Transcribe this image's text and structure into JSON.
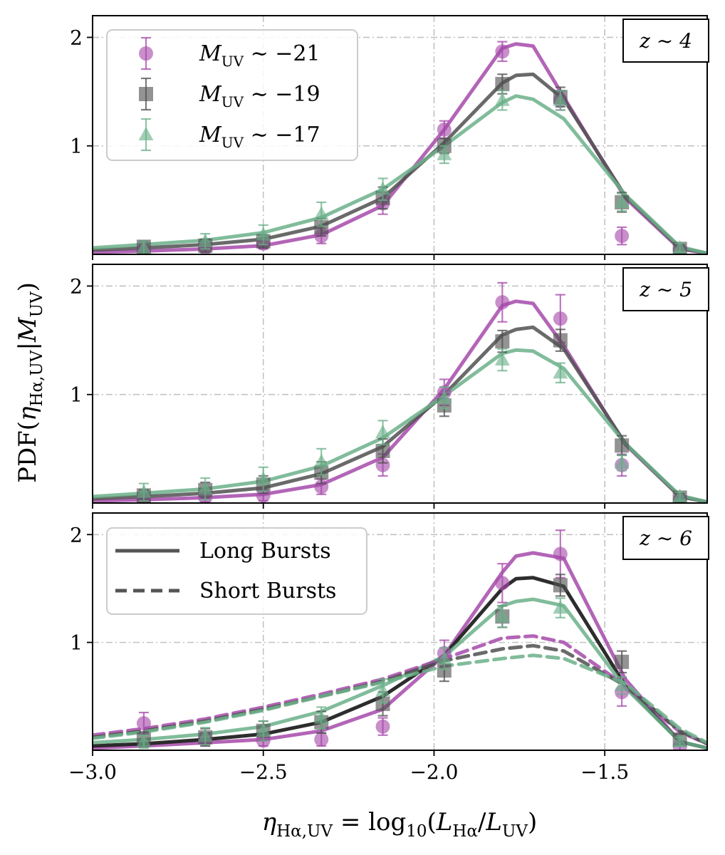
{
  "chart_data": {
    "type": "line",
    "xlabel": "η_{Hα,UV} = log10(L_Hα / L_UV)",
    "ylabel": "PDF(η_{Hα,UV} | M_UV)",
    "xlim": [
      -3.0,
      -1.2
    ],
    "ylim": [
      0,
      2.2
    ],
    "xticks": [
      -3.0,
      -2.5,
      -2.0,
      -1.5
    ],
    "xtick_labels": [
      "−3.0",
      "−2.5",
      "−2.0",
      "−1.5"
    ],
    "yticks": [
      1,
      2
    ],
    "ytick_labels": [
      "1",
      "2"
    ],
    "grid": true,
    "colors": {
      "m21": "#a64aaa",
      "m19": "#505050",
      "m17": "#6bb089"
    },
    "legend_magnitudes": {
      "entries": [
        {
          "key": "m21",
          "marker": "circle",
          "label_prefix": "M",
          "label_sub": "UV",
          "label_suffix": " ∼ −21"
        },
        {
          "key": "m19",
          "marker": "square",
          "label_prefix": "M",
          "label_sub": "UV",
          "label_suffix": " ∼ −19"
        },
        {
          "key": "m17",
          "marker": "triangle",
          "label_prefix": "M",
          "label_sub": "UV",
          "label_suffix": " ∼ −17"
        }
      ]
    },
    "legend_bursts": {
      "entries": [
        {
          "style": "solid",
          "label": "Long Bursts"
        },
        {
          "style": "dashed",
          "label": "Short Bursts"
        }
      ]
    },
    "panels": [
      {
        "label": "z ∼ 4",
        "curves": [
          {
            "key": "m21",
            "style": "solid",
            "x": [
              -3.0,
              -2.85,
              -2.67,
              -2.5,
              -2.33,
              -2.15,
              -1.97,
              -1.8,
              -1.76,
              -1.71,
              -1.62,
              -1.44,
              -1.28,
              -1.2
            ],
            "y": [
              0.02,
              0.03,
              0.05,
              0.08,
              0.18,
              0.45,
              1.15,
              1.9,
              1.94,
              1.92,
              1.45,
              0.52,
              0.05,
              0.01
            ]
          },
          {
            "key": "m19",
            "style": "solid",
            "x": [
              -3.0,
              -2.85,
              -2.67,
              -2.5,
              -2.33,
              -2.15,
              -1.97,
              -1.8,
              -1.76,
              -1.71,
              -1.62,
              -1.44,
              -1.28,
              -1.2
            ],
            "y": [
              0.04,
              0.06,
              0.09,
              0.14,
              0.26,
              0.52,
              1.03,
              1.58,
              1.65,
              1.66,
              1.43,
              0.54,
              0.06,
              0.01
            ]
          },
          {
            "key": "m17",
            "style": "solid",
            "x": [
              -3.0,
              -2.85,
              -2.67,
              -2.5,
              -2.33,
              -2.15,
              -1.97,
              -1.8,
              -1.76,
              -1.71,
              -1.62,
              -1.44,
              -1.28,
              -1.2
            ],
            "y": [
              0.06,
              0.09,
              0.13,
              0.2,
              0.34,
              0.6,
              1.0,
              1.4,
              1.46,
              1.43,
              1.25,
              0.55,
              0.07,
              0.01
            ]
          }
        ],
        "points": [
          {
            "key": "m21",
            "x": [
              -2.85,
              -2.67,
              -2.5,
              -2.33,
              -2.15,
              -1.97,
              -1.8,
              -1.63,
              -1.45,
              -1.28
            ],
            "y": [
              0.04,
              0.06,
              0.1,
              0.17,
              0.47,
              1.15,
              1.87,
              1.42,
              0.17,
              0.04
            ],
            "err": [
              0.03,
              0.04,
              0.05,
              0.07,
              0.1,
              0.08,
              0.09,
              0.09,
              0.08,
              0.03
            ]
          },
          {
            "key": "m19",
            "x": [
              -2.85,
              -2.67,
              -2.5,
              -2.33,
              -2.15,
              -1.97,
              -1.8,
              -1.63,
              -1.45,
              -1.28
            ],
            "y": [
              0.07,
              0.08,
              0.12,
              0.25,
              0.52,
              1.0,
              1.57,
              1.45,
              0.48,
              0.05
            ],
            "err": [
              0.05,
              0.06,
              0.06,
              0.08,
              0.1,
              0.07,
              0.09,
              0.09,
              0.09,
              0.04
            ]
          },
          {
            "key": "m17",
            "x": [
              -2.85,
              -2.67,
              -2.5,
              -2.33,
              -2.15,
              -1.97,
              -1.8,
              -1.63,
              -1.45,
              -1.28
            ],
            "y": [
              0.06,
              0.12,
              0.18,
              0.37,
              0.6,
              0.92,
              1.42,
              1.42,
              0.48,
              0.06
            ],
            "err": [
              0.06,
              0.07,
              0.09,
              0.11,
              0.1,
              0.08,
              0.09,
              0.09,
              0.08,
              0.04
            ]
          }
        ]
      },
      {
        "label": "z ∼ 5",
        "curves": [
          {
            "key": "m21",
            "style": "solid",
            "x": [
              -3.0,
              -2.85,
              -2.67,
              -2.5,
              -2.33,
              -2.15,
              -1.97,
              -1.8,
              -1.76,
              -1.71,
              -1.62,
              -1.44,
              -1.28,
              -1.2
            ],
            "y": [
              0.02,
              0.03,
              0.05,
              0.08,
              0.17,
              0.42,
              1.05,
              1.82,
              1.86,
              1.84,
              1.45,
              0.54,
              0.06,
              0.01
            ]
          },
          {
            "key": "m19",
            "style": "solid",
            "x": [
              -3.0,
              -2.85,
              -2.67,
              -2.5,
              -2.33,
              -2.15,
              -1.97,
              -1.8,
              -1.76,
              -1.71,
              -1.62,
              -1.44,
              -1.28,
              -1.2
            ],
            "y": [
              0.04,
              0.06,
              0.09,
              0.14,
              0.27,
              0.52,
              1.0,
              1.55,
              1.6,
              1.62,
              1.42,
              0.55,
              0.06,
              0.01
            ]
          },
          {
            "key": "m17",
            "style": "solid",
            "x": [
              -3.0,
              -2.85,
              -2.67,
              -2.5,
              -2.33,
              -2.15,
              -1.97,
              -1.8,
              -1.76,
              -1.71,
              -1.62,
              -1.44,
              -1.28,
              -1.2
            ],
            "y": [
              0.06,
              0.09,
              0.13,
              0.2,
              0.34,
              0.6,
              0.99,
              1.38,
              1.41,
              1.4,
              1.24,
              0.55,
              0.07,
              0.01
            ]
          }
        ],
        "points": [
          {
            "key": "m21",
            "x": [
              -2.85,
              -2.67,
              -2.5,
              -2.33,
              -2.15,
              -1.97,
              -1.8,
              -1.63,
              -1.45,
              -1.28
            ],
            "y": [
              0.03,
              0.05,
              0.07,
              0.15,
              0.35,
              1.02,
              1.85,
              1.7,
              0.35,
              0.03
            ],
            "err": [
              0.03,
              0.04,
              0.05,
              0.07,
              0.1,
              0.12,
              0.18,
              0.22,
              0.1,
              0.03
            ]
          },
          {
            "key": "m19",
            "x": [
              -2.85,
              -2.67,
              -2.5,
              -2.33,
              -2.15,
              -1.97,
              -1.8,
              -1.63,
              -1.45,
              -1.28
            ],
            "y": [
              0.07,
              0.12,
              0.17,
              0.28,
              0.48,
              0.9,
              1.49,
              1.5,
              0.53,
              0.05
            ],
            "err": [
              0.05,
              0.07,
              0.08,
              0.1,
              0.11,
              0.1,
              0.1,
              0.1,
              0.09,
              0.04
            ]
          },
          {
            "key": "m17",
            "x": [
              -2.85,
              -2.67,
              -2.5,
              -2.33,
              -2.15,
              -1.97,
              -1.8,
              -1.63,
              -1.45,
              -1.28
            ],
            "y": [
              0.1,
              0.13,
              0.22,
              0.38,
              0.65,
              0.97,
              1.32,
              1.2,
              0.37,
              0.06
            ],
            "err": [
              0.08,
              0.1,
              0.11,
              0.12,
              0.11,
              0.1,
              0.1,
              0.09,
              0.07,
              0.04
            ]
          }
        ]
      },
      {
        "label": "z ∼ 6",
        "curves": [
          {
            "key": "m21",
            "style": "solid",
            "x": [
              -3.0,
              -2.85,
              -2.67,
              -2.5,
              -2.33,
              -2.15,
              -1.97,
              -1.8,
              -1.76,
              -1.71,
              -1.62,
              -1.44,
              -1.28,
              -1.2
            ],
            "y": [
              0.02,
              0.04,
              0.07,
              0.1,
              0.18,
              0.38,
              0.88,
              1.65,
              1.8,
              1.83,
              1.78,
              0.66,
              0.08,
              0.02
            ]
          },
          {
            "key": "m19",
            "style": "solid",
            "x": [
              -3.0,
              -2.85,
              -2.67,
              -2.5,
              -2.33,
              -2.15,
              -1.97,
              -1.8,
              -1.76,
              -1.71,
              -1.62,
              -1.44,
              -1.28,
              -1.2
            ],
            "y": [
              0.04,
              0.06,
              0.1,
              0.15,
              0.26,
              0.5,
              0.88,
              1.5,
              1.59,
              1.6,
              1.52,
              0.6,
              0.08,
              0.02
            ]
          },
          {
            "key": "m17",
            "style": "solid",
            "x": [
              -3.0,
              -2.85,
              -2.67,
              -2.5,
              -2.33,
              -2.15,
              -1.97,
              -1.8,
              -1.76,
              -1.71,
              -1.62,
              -1.44,
              -1.28,
              -1.2
            ],
            "y": [
              0.07,
              0.1,
              0.15,
              0.22,
              0.36,
              0.6,
              0.87,
              1.34,
              1.38,
              1.4,
              1.34,
              0.58,
              0.08,
              0.02
            ]
          },
          {
            "key": "m21",
            "style": "dashed",
            "x": [
              -3.0,
              -2.85,
              -2.67,
              -2.5,
              -2.33,
              -2.15,
              -1.97,
              -1.8,
              -1.71,
              -1.62,
              -1.44,
              -1.28,
              -1.2
            ],
            "y": [
              0.14,
              0.2,
              0.29,
              0.4,
              0.52,
              0.66,
              0.85,
              1.04,
              1.06,
              1.0,
              0.6,
              0.17,
              0.06
            ]
          },
          {
            "key": "m19",
            "style": "dashed",
            "x": [
              -3.0,
              -2.85,
              -2.67,
              -2.5,
              -2.33,
              -2.15,
              -1.97,
              -1.8,
              -1.71,
              -1.62,
              -1.44,
              -1.28,
              -1.2
            ],
            "y": [
              0.12,
              0.18,
              0.27,
              0.38,
              0.5,
              0.64,
              0.83,
              0.94,
              0.97,
              0.92,
              0.6,
              0.18,
              0.06
            ]
          },
          {
            "key": "m17",
            "style": "dashed",
            "x": [
              -3.0,
              -2.85,
              -2.67,
              -2.5,
              -2.33,
              -2.15,
              -1.97,
              -1.8,
              -1.71,
              -1.62,
              -1.44,
              -1.28,
              -1.2
            ],
            "y": [
              0.11,
              0.17,
              0.26,
              0.37,
              0.5,
              0.63,
              0.78,
              0.85,
              0.88,
              0.85,
              0.62,
              0.2,
              0.07
            ]
          }
        ],
        "points": [
          {
            "key": "m21",
            "x": [
              -2.85,
              -2.67,
              -2.5,
              -2.33,
              -2.15,
              -1.97,
              -1.8,
              -1.63,
              -1.45,
              -1.28
            ],
            "y": [
              0.25,
              0.1,
              0.09,
              0.1,
              0.22,
              0.9,
              1.55,
              1.82,
              0.54,
              0.03
            ],
            "err": [
              0.1,
              0.06,
              0.05,
              0.06,
              0.08,
              0.12,
              0.18,
              0.22,
              0.13,
              0.03
            ]
          },
          {
            "key": "m19",
            "x": [
              -2.85,
              -2.67,
              -2.5,
              -2.33,
              -2.15,
              -1.97,
              -1.8,
              -1.63,
              -1.45,
              -1.28
            ],
            "y": [
              0.1,
              0.12,
              0.18,
              0.26,
              0.43,
              0.74,
              1.24,
              1.53,
              0.82,
              0.1
            ],
            "err": [
              0.07,
              0.08,
              0.09,
              0.1,
              0.11,
              0.1,
              0.1,
              0.1,
              0.1,
              0.05
            ]
          },
          {
            "key": "m17",
            "x": [
              -2.85,
              -2.67,
              -2.5,
              -2.33,
              -2.15,
              -1.97,
              -1.8,
              -1.63,
              -1.45,
              -1.28
            ],
            "y": [
              0.08,
              0.13,
              0.18,
              0.3,
              0.55,
              0.85,
              1.24,
              1.32,
              0.6,
              0.08
            ],
            "err": [
              0.06,
              0.08,
              0.09,
              0.1,
              0.11,
              0.1,
              0.1,
              0.09,
              0.08,
              0.04
            ]
          }
        ]
      }
    ]
  }
}
